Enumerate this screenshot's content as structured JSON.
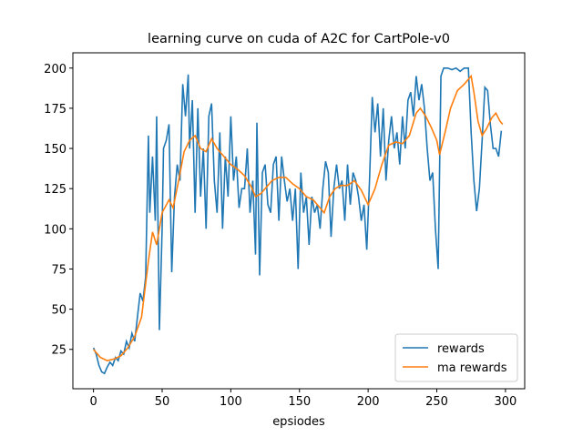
{
  "chart_data": {
    "type": "line",
    "title": "learning curve on cuda of A2C for CartPole-v0",
    "x_label": "epsiodes",
    "xlim": [
      -15,
      314
    ],
    "ylim": [
      0.5,
      209.5
    ],
    "xticks": [
      0,
      50,
      100,
      150,
      200,
      250,
      300
    ],
    "yticks": [
      25,
      50,
      75,
      100,
      125,
      150,
      175,
      200
    ],
    "legend": "lower right",
    "series": [
      {
        "name": "rewards",
        "color": "#1f77b4",
        "x": [
          0,
          2,
          4,
          6,
          8,
          10,
          12,
          14,
          16,
          18,
          20,
          22,
          24,
          26,
          28,
          30,
          32,
          34,
          36,
          38,
          40,
          41,
          43,
          45,
          46,
          48,
          50,
          51,
          53,
          55,
          57,
          59,
          61,
          63,
          65,
          67,
          69,
          70,
          72,
          74,
          76,
          78,
          80,
          82,
          84,
          86,
          88,
          90,
          92,
          94,
          96,
          98,
          100,
          102,
          104,
          106,
          108,
          110,
          112,
          114,
          116,
          118,
          119,
          121,
          123,
          125,
          127,
          129,
          131,
          133,
          135,
          137,
          139,
          141,
          143,
          145,
          147,
          149,
          151,
          153,
          155,
          157,
          159,
          161,
          163,
          165,
          167,
          169,
          171,
          173,
          175,
          177,
          179,
          181,
          183,
          185,
          187,
          189,
          191,
          193,
          195,
          197,
          199,
          201,
          203,
          205,
          207,
          209,
          211,
          213,
          215,
          217,
          219,
          221,
          223,
          225,
          227,
          229,
          231,
          233,
          235,
          237,
          239,
          241,
          243,
          245,
          247,
          249,
          251,
          253,
          255,
          258,
          261,
          264,
          267,
          270,
          273,
          275,
          277,
          279,
          281,
          283,
          285,
          287,
          289,
          291,
          293,
          295,
          297
        ],
        "values": [
          26,
          22,
          15,
          11,
          10,
          14,
          17,
          15,
          20,
          18,
          24,
          22,
          30,
          26,
          35,
          30,
          45,
          60,
          55,
          70,
          158,
          110,
          145,
          105,
          170,
          37,
          100,
          150,
          155,
          165,
          73,
          120,
          140,
          130,
          190,
          170,
          196,
          150,
          180,
          110,
          175,
          120,
          150,
          100,
          170,
          178,
          130,
          110,
          160,
          100,
          145,
          120,
          170,
          130,
          145,
          113,
          125,
          125,
          150,
          110,
          130,
          84,
          166,
          71,
          135,
          140,
          115,
          110,
          140,
          145,
          105,
          145,
          130,
          117,
          125,
          105,
          125,
          75,
          135,
          110,
          120,
          90,
          120,
          110,
          115,
          100,
          125,
          142,
          135,
          95,
          125,
          140,
          125,
          130,
          105,
          140,
          115,
          135,
          130,
          120,
          105,
          115,
          87,
          130,
          182,
          160,
          178,
          145,
          175,
          130,
          155,
          170,
          150,
          160,
          140,
          170,
          150,
          180,
          185,
          170,
          195,
          180,
          190,
          175,
          150,
          130,
          135,
          100,
          75,
          195,
          200,
          200,
          199,
          200,
          198,
          200,
          200,
          160,
          130,
          111,
          125,
          155,
          188,
          186,
          165,
          150,
          150,
          145,
          161
        ]
      },
      {
        "name": "ma rewards",
        "color": "#ff7f0e",
        "x": [
          0,
          5,
          10,
          15,
          20,
          25,
          30,
          35,
          40,
          43,
          46,
          50,
          55,
          58,
          62,
          66,
          70,
          74,
          78,
          82,
          86,
          90,
          95,
          100,
          105,
          110,
          115,
          118,
          122,
          126,
          130,
          135,
          140,
          145,
          150,
          155,
          160,
          165,
          168,
          172,
          176,
          180,
          185,
          190,
          195,
          200,
          205,
          210,
          215,
          220,
          225,
          230,
          235,
          238,
          242,
          246,
          250,
          252,
          256,
          260,
          265,
          270,
          275,
          277,
          280,
          283,
          286,
          290,
          293,
          296,
          298
        ],
        "values": [
          25,
          20,
          18,
          19,
          21,
          26,
          33,
          45,
          80,
          98,
          90,
          110,
          118,
          113,
          130,
          148,
          155,
          158,
          150,
          148,
          156,
          150,
          145,
          140,
          137,
          133,
          126,
          120,
          122,
          126,
          130,
          132,
          132,
          128,
          125,
          120,
          118,
          113,
          110,
          120,
          125,
          127,
          127,
          130,
          124,
          115,
          125,
          140,
          152,
          154,
          153,
          158,
          172,
          175,
          170,
          163,
          155,
          146,
          160,
          175,
          186,
          190,
          195,
          185,
          167,
          158,
          162,
          169,
          172,
          167,
          165
        ]
      }
    ]
  }
}
